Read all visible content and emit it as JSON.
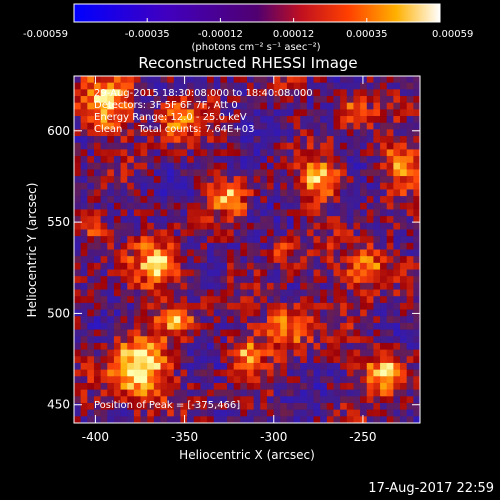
{
  "chart_data": {
    "type": "heatmap",
    "title": "Reconstructed RHESSI Image",
    "xlabel": "Heliocentric X (arcsec)",
    "ylabel": "Heliocentric Y (arcsec)",
    "xlim": [
      -412,
      -218
    ],
    "ylim": [
      440,
      630
    ],
    "x_ticks": [
      -400,
      -350,
      -300,
      -250
    ],
    "y_ticks": [
      450,
      500,
      550,
      600
    ],
    "colorbar": {
      "ticks": [
        "-0.00059",
        "-0.00035",
        "-0.00012",
        "0.00012",
        "0.00035",
        "0.00059"
      ],
      "unit_label": "(photons cm⁻² s⁻¹ asec⁻²)",
      "range": [
        -0.00059,
        0.00059
      ]
    },
    "annotations": {
      "line1": "29-Aug-2015 18:30:08.000 to 18:40:08.000",
      "line2": "Detectors: 3F 5F 6F 7F, Att 0",
      "line3": "Energy Range: 12.0 - 25.0 keV",
      "line4": "Clean     Total counts: 7.64E+03",
      "peak": "Position of Peak = [-375,466]"
    },
    "peak": {
      "x": -375,
      "y": 466
    },
    "grid": false,
    "colors": {
      "negative_high": "#1a1aff",
      "negative_low": "#5a2a9a",
      "zero": "#3c1060",
      "positive_mid": "#e03010",
      "positive_high": "#ffffa0"
    }
  },
  "footer": {
    "timestamp": "17-Aug-2017 22:59"
  }
}
